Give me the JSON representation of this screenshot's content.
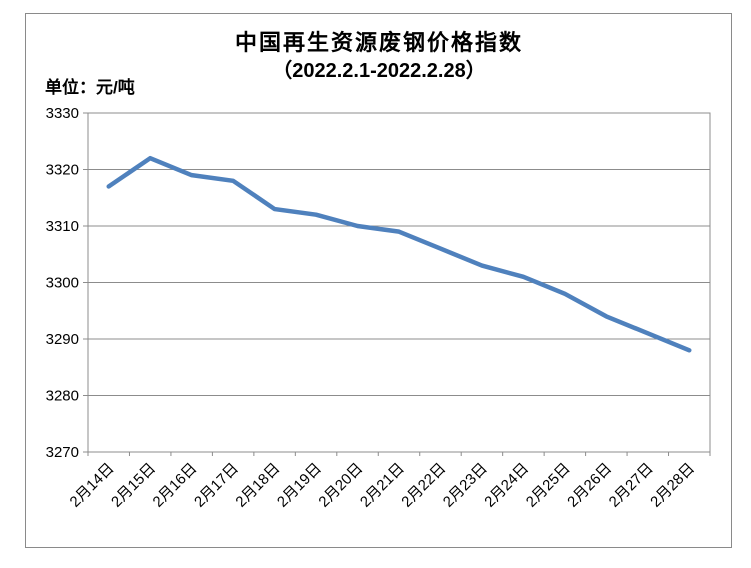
{
  "header": {
    "title": "中国再生资源废钢价格指数",
    "subtitle": "（2022.2.1-2022.2.28）",
    "unit_label": "单位：元/吨"
  },
  "chart_data": {
    "type": "line",
    "title": "中国再生资源废钢价格指数（2022.2.1-2022.2.28）",
    "ylabel": "单位：元/吨",
    "categories": [
      "2月14日",
      "2月15日",
      "2月16日",
      "2月17日",
      "2月18日",
      "2月19日",
      "2月20日",
      "2月21日",
      "2月22日",
      "2月23日",
      "2月24日",
      "2月25日",
      "2月26日",
      "2月27日",
      "2月28日"
    ],
    "values": [
      3317,
      3322,
      3319,
      3318,
      3313,
      3312,
      3310,
      3309,
      3306,
      3303,
      3301,
      3298,
      3294,
      3291,
      3288
    ],
    "yticks": [
      3330,
      3320,
      3310,
      3300,
      3290,
      3280,
      3270
    ],
    "ylim": [
      3270,
      3330
    ],
    "ytick_step": 10,
    "grid": true,
    "legend": false,
    "line_color": "#4F81BD",
    "grid_color": "#8c8c8c",
    "frame_color": "#8c8c8c",
    "text_color": "#000000"
  }
}
